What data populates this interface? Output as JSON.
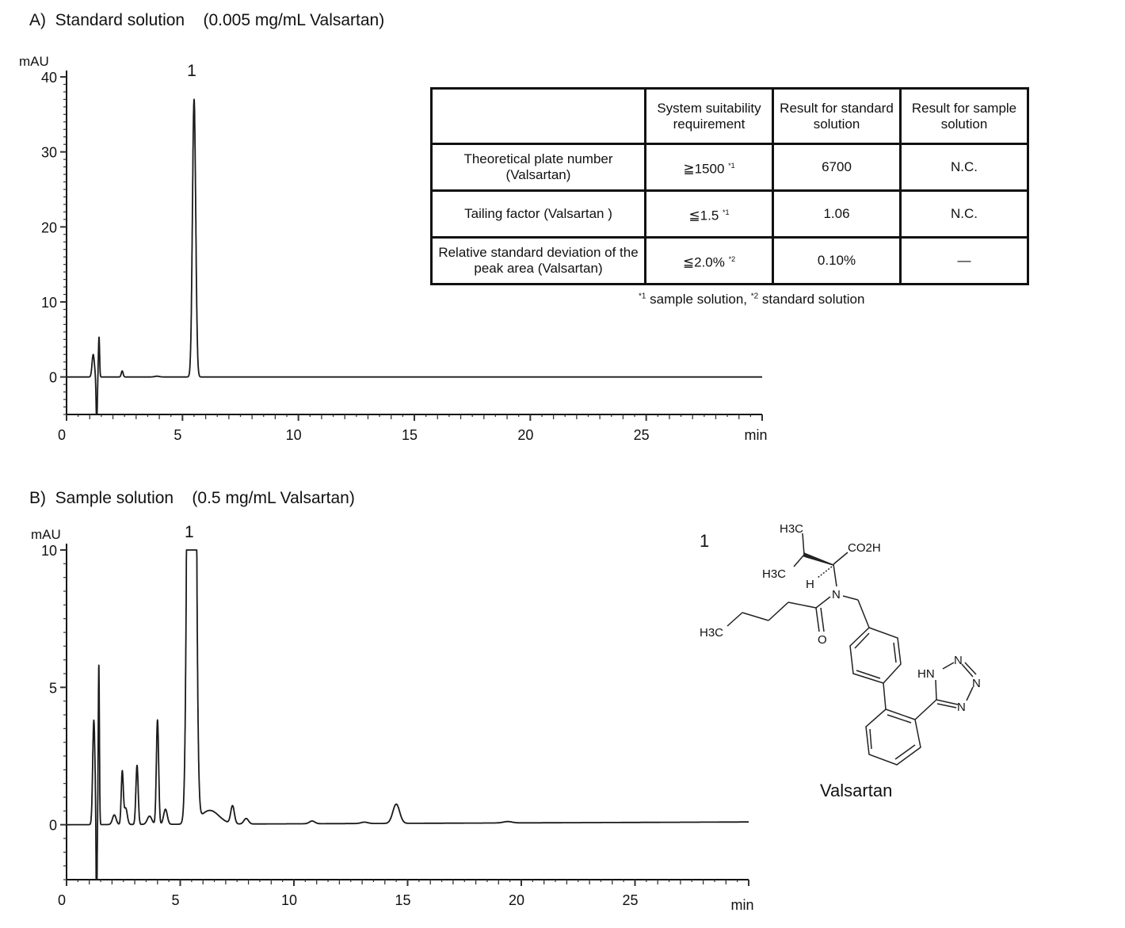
{
  "panels": [
    {
      "title": "A)  Standard solution    (0.005 mg/mL Valsartan)",
      "peak_label": "1"
    },
    {
      "title": "B)  Sample solution    (0.5 mg/mL Valsartan)",
      "peak_label": "1"
    }
  ],
  "table": {
    "headers": [
      "",
      "System suitability requirement",
      "Result for standard solution",
      "Result for sample solution"
    ],
    "rows": [
      {
        "item": "Theoretical plate number (Valsartan)",
        "requirement": "≧1500",
        "req_note": "*1",
        "standard": "6700",
        "sample": "N.C."
      },
      {
        "item": "Tailing factor (Valsartan )",
        "requirement": "≦1.5",
        "req_note": "*1",
        "standard": "1.06",
        "sample": "N.C."
      },
      {
        "item": "Relative standard deviation of the peak area (Valsartan)",
        "requirement": "≦2.0%",
        "req_note": "*2",
        "standard": "0.10%",
        "sample": "—"
      }
    ],
    "footnote": {
      "m1": "*1",
      "t1": " sample solution, ",
      "m2": "*2",
      "t2": " standard solution"
    }
  },
  "structure": {
    "number": "1",
    "name": "Valsartan",
    "labels": {
      "h3c_top": "H3C",
      "h3c_mid": "H3C",
      "h3c_chain": "H3C",
      "co2h": "CO2H",
      "h": "H",
      "n": "N",
      "o": "O",
      "hn": "HN",
      "n2": "N",
      "n3": "N",
      "n4": "N"
    }
  },
  "chart_data": [
    {
      "type": "line",
      "title": "A)  Standard solution    (0.005 mg/mL Valsartan)",
      "xlabel": "min",
      "ylabel": "mAU",
      "xlim": [
        0,
        30
      ],
      "ylim": [
        -5,
        40
      ],
      "xticks": [
        0,
        5,
        10,
        15,
        20,
        25
      ],
      "yticks": [
        0,
        10,
        20,
        30,
        40
      ],
      "grid": false,
      "baseline": 0,
      "peaks": [
        {
          "rt": 1.15,
          "height": 3.0,
          "width": 0.05
        },
        {
          "rt": 1.3,
          "height": -6.5,
          "width": 0.025
        },
        {
          "rt": 1.4,
          "height": 5.3,
          "width": 0.025
        },
        {
          "rt": 2.4,
          "height": 0.8,
          "width": 0.04
        },
        {
          "rt": 3.9,
          "height": 0.1,
          "width": 0.1
        },
        {
          "rt": 5.5,
          "height": 37,
          "width": 0.07,
          "label": "1"
        }
      ]
    },
    {
      "type": "line",
      "title": "B)  Sample solution    (0.5 mg/mL Valsartan)",
      "xlabel": "min",
      "ylabel": "mAU",
      "xlim": [
        0,
        30
      ],
      "ylim": [
        -2,
        10
      ],
      "xticks": [
        0,
        5,
        10,
        15,
        20,
        25
      ],
      "yticks": [
        0,
        5,
        10
      ],
      "grid": false,
      "baseline_start": 0,
      "baseline_end": 0.1,
      "peaks": [
        {
          "rt": 1.2,
          "height": 3.8,
          "width": 0.05
        },
        {
          "rt": 1.32,
          "height": -4.0,
          "width": 0.02
        },
        {
          "rt": 1.42,
          "height": 5.8,
          "width": 0.025
        },
        {
          "rt": 2.1,
          "height": 0.35,
          "width": 0.08
        },
        {
          "rt": 2.45,
          "height": 1.9,
          "width": 0.045
        },
        {
          "rt": 2.6,
          "height": 0.6,
          "width": 0.07
        },
        {
          "rt": 3.1,
          "height": 2.15,
          "width": 0.05
        },
        {
          "rt": 3.65,
          "height": 0.3,
          "width": 0.1
        },
        {
          "rt": 4.0,
          "height": 3.8,
          "width": 0.05
        },
        {
          "rt": 4.35,
          "height": 0.55,
          "width": 0.08
        },
        {
          "rt": 5.5,
          "height": 60,
          "width": 0.12,
          "label": "1",
          "off_scale": true
        },
        {
          "rt": 6.3,
          "height": 0.5,
          "width": 0.4
        },
        {
          "rt": 7.3,
          "height": 0.65,
          "width": 0.08
        },
        {
          "rt": 7.9,
          "height": 0.2,
          "width": 0.1
        },
        {
          "rt": 10.8,
          "height": 0.1,
          "width": 0.12
        },
        {
          "rt": 13.1,
          "height": 0.05,
          "width": 0.15
        },
        {
          "rt": 14.5,
          "height": 0.7,
          "width": 0.15
        },
        {
          "rt": 19.4,
          "height": 0.05,
          "width": 0.2
        }
      ]
    }
  ]
}
